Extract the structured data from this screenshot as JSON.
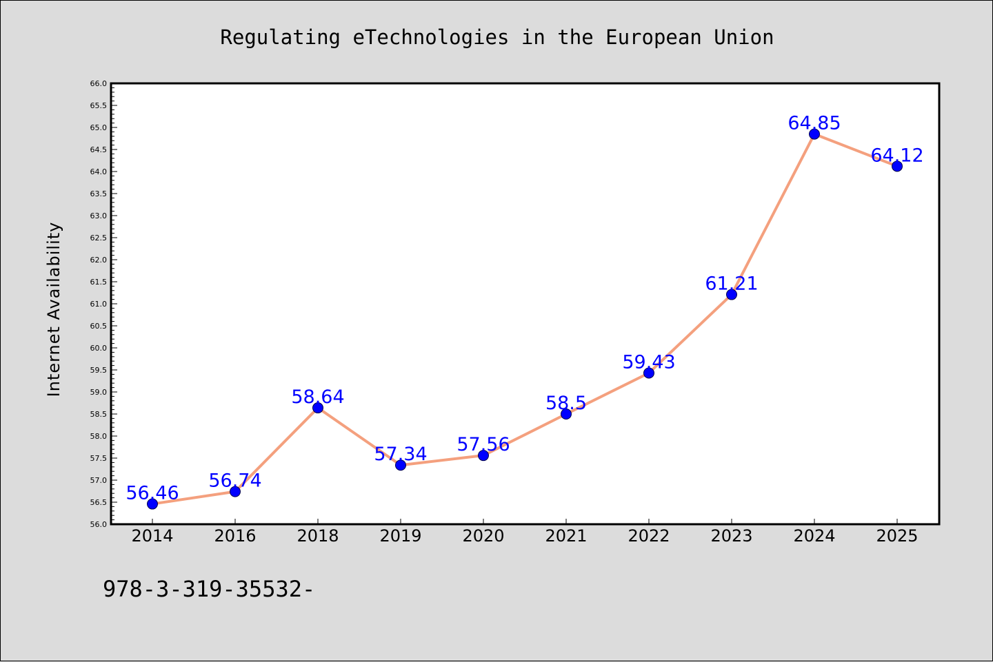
{
  "chart_data": {
    "type": "line",
    "title": "Regulating eTechnologies in the European Union",
    "xlabel": "",
    "ylabel": "Internet Availability",
    "categories": [
      "2014",
      "2016",
      "2018",
      "2019",
      "2020",
      "2021",
      "2022",
      "2023",
      "2024",
      "2025"
    ],
    "values": [
      56.46,
      56.74,
      58.64,
      57.34,
      57.56,
      58.5,
      59.43,
      61.21,
      64.85,
      64.12
    ],
    "data_labels": [
      "56.46",
      "56.74",
      "58.64",
      "57.34",
      "57.56",
      "58.5",
      "59.43",
      "61.21",
      "64.85",
      "64.12"
    ],
    "ylim": [
      56.0,
      66.0
    ],
    "y_major_step": 0.5,
    "y_tick_labels": [
      "56.0",
      "56.5",
      "57.0",
      "57.5",
      "58.0",
      "58.5",
      "59.0",
      "59.5",
      "60.0",
      "60.5",
      "61.0",
      "61.5",
      "62.0",
      "62.5",
      "63.0",
      "63.5",
      "64.0",
      "64.5",
      "65.0",
      "65.5",
      "66.0"
    ],
    "grid": false,
    "legend": "none",
    "line_color": "#f4a07e",
    "marker_color": "#0000ff",
    "label_color": "#0000ff"
  },
  "footer": {
    "text": "978-3-319-35532-"
  },
  "colors": {
    "background": "#dcdcdc",
    "plot_background": "#ffffff"
  }
}
